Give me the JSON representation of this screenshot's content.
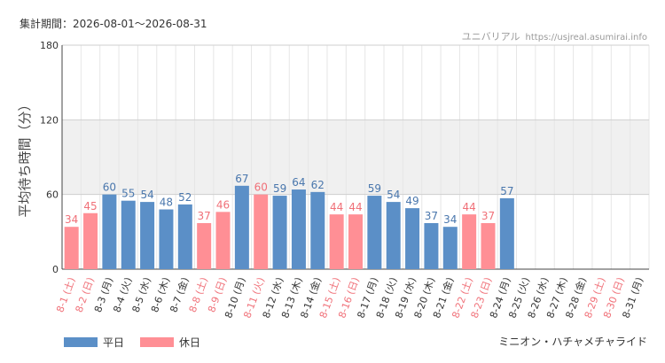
{
  "header": {
    "period": "集計期間：2026-08-01～2026-08-31",
    "credit_name": "ユニバリアル",
    "credit_site": "https://usjreal.asumirai.info"
  },
  "footer": {
    "attraction": "ミニオン・ハチャメチャライド"
  },
  "legend": [
    {
      "label": "平日",
      "color": "#5b8fc7"
    },
    {
      "label": "休日",
      "color": "#ff8f95"
    }
  ],
  "chart_data": {
    "type": "bar",
    "ylabel": "平均待ち時間（分）",
    "ylim": [
      0,
      180
    ],
    "yticks": [
      0,
      60,
      120,
      180
    ],
    "colors": {
      "weekday": "#5b8fc7",
      "holiday": "#ff8f95",
      "weekday_label": "#4a77ad",
      "holiday_label": "#f07078"
    },
    "categories": [
      "8-1 (土)",
      "8-2 (日)",
      "8-3 (月)",
      "8-4 (火)",
      "8-5 (水)",
      "8-6 (木)",
      "8-7 (金)",
      "8-8 (土)",
      "8-9 (日)",
      "8-10 (月)",
      "8-11 (火)",
      "8-12 (水)",
      "8-13 (木)",
      "8-14 (金)",
      "8-15 (土)",
      "8-16 (日)",
      "8-17 (月)",
      "8-18 (火)",
      "8-19 (水)",
      "8-20 (木)",
      "8-21 (金)",
      "8-22 (土)",
      "8-23 (日)",
      "8-24 (月)",
      "8-25 (火)",
      "8-26 (水)",
      "8-27 (木)",
      "8-28 (金)",
      "8-29 (土)",
      "8-30 (日)",
      "8-31 (月)"
    ],
    "holiday": [
      true,
      true,
      false,
      false,
      false,
      false,
      false,
      true,
      true,
      false,
      true,
      false,
      false,
      false,
      true,
      true,
      false,
      false,
      false,
      false,
      false,
      true,
      true,
      false,
      false,
      false,
      false,
      false,
      true,
      true,
      false
    ],
    "values": [
      34,
      45,
      60,
      55,
      54,
      48,
      52,
      37,
      46,
      67,
      60,
      59,
      64,
      62,
      44,
      44,
      59,
      54,
      49,
      37,
      34,
      44,
      37,
      57,
      null,
      null,
      null,
      null,
      null,
      null,
      null
    ]
  }
}
